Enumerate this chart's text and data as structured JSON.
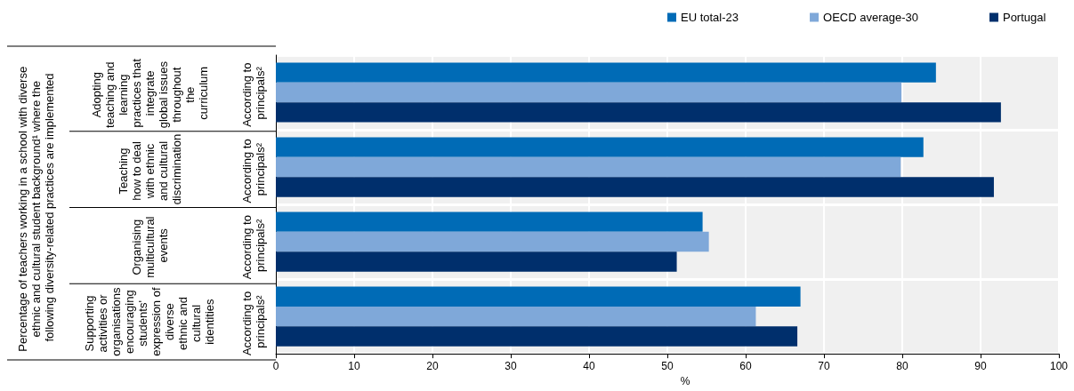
{
  "chart_data": {
    "type": "bar",
    "orientation": "horizontal",
    "xlabel": "%",
    "categories": [
      "Adopting teaching and learning practices that integrate global issues throughout the curriculum",
      "Teaching how to deal with ethnic and cultural discrimination",
      "Organising multicultural events",
      "Supporting activities or organisations encouraging students' expression of diverse ethnic and cultural identities"
    ],
    "annotations": [
      "Percentage of teachers working in a school with diverse ethnic and cultural student background¹ where the following diversity-related practices are implemented",
      "According to principals²",
      "According to principals²",
      "According to principals²",
      "According to principals²"
    ],
    "series": [
      {
        "name": "EU total-23",
        "color": "#006bb6",
        "values": [
          84.3,
          82.7,
          54.5,
          67.0
        ]
      },
      {
        "name": "OECD average-30",
        "color": "#7fa8d9",
        "values": [
          79.9,
          79.8,
          55.3,
          61.3
        ]
      },
      {
        "name": "Portugal",
        "color": "#002f6c",
        "values": [
          92.6,
          91.7,
          51.2,
          66.6
        ]
      }
    ],
    "xlim": [
      0,
      100
    ],
    "xticks": [
      0,
      10,
      20,
      30,
      40,
      50,
      60,
      70,
      80,
      90,
      100
    ],
    "grid": true,
    "legend": "top"
  }
}
